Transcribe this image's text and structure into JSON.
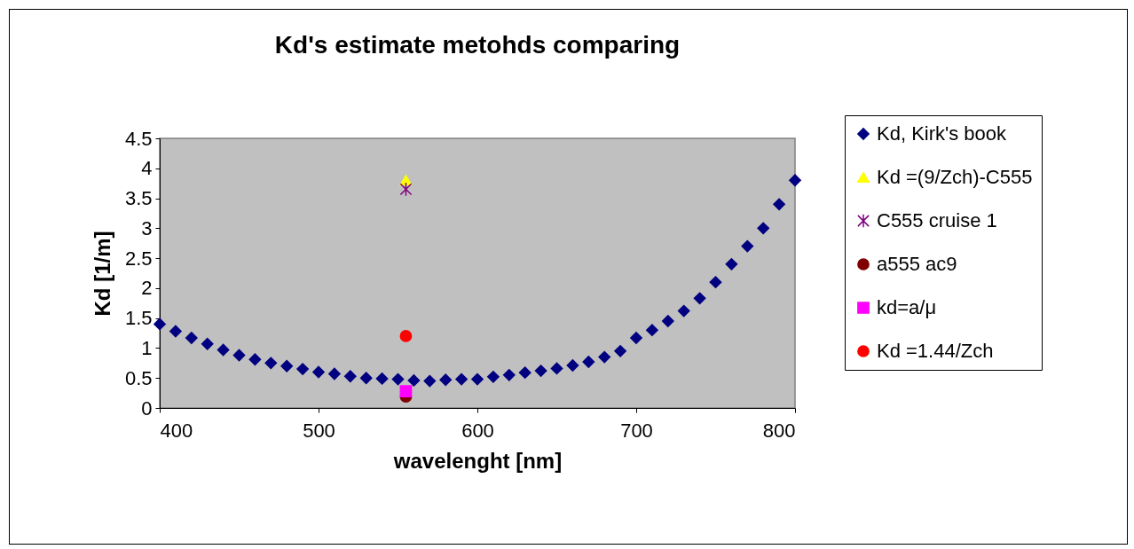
{
  "chart_data": {
    "type": "scatter",
    "title": "Kd's estimate metohds comparing",
    "xlabel": "wavelenght [nm]",
    "ylabel": "Kd [1/m]",
    "xlim": [
      400,
      800
    ],
    "xticks": [
      400,
      500,
      600,
      700,
      800
    ],
    "ylim": [
      0,
      4.5
    ],
    "yticks": [
      0,
      0.5,
      1,
      1.5,
      2,
      2.5,
      3,
      3.5,
      4,
      4.5
    ],
    "grid": false,
    "legend": "right",
    "series": [
      {
        "name": "Kd, Kirk's book",
        "color": "#000080",
        "marker": "diamond",
        "x": [
          400,
          410,
          420,
          430,
          440,
          450,
          460,
          470,
          480,
          490,
          500,
          510,
          520,
          530,
          540,
          550,
          560,
          570,
          580,
          590,
          600,
          610,
          620,
          630,
          640,
          650,
          660,
          670,
          680,
          690,
          700,
          710,
          720,
          730,
          740,
          750,
          760,
          770,
          780,
          790,
          800
        ],
        "values": [
          1.4,
          1.28,
          1.17,
          1.07,
          0.97,
          0.88,
          0.81,
          0.75,
          0.7,
          0.65,
          0.6,
          0.57,
          0.53,
          0.5,
          0.49,
          0.48,
          0.46,
          0.45,
          0.47,
          0.48,
          0.48,
          0.52,
          0.55,
          0.59,
          0.62,
          0.66,
          0.71,
          0.77,
          0.85,
          0.95,
          1.17,
          1.3,
          1.45,
          1.62,
          1.83,
          2.1,
          2.4,
          2.7,
          3.0,
          3.4,
          3.8
        ]
      },
      {
        "name": "Kd =(9/Zch)-C555",
        "color": "#ffff00",
        "marker": "triangle",
        "x": [
          555
        ],
        "values": [
          3.8
        ]
      },
      {
        "name": "C555 cruise 1",
        "color": "#800080",
        "marker": "cross",
        "x": [
          555
        ],
        "values": [
          3.65
        ]
      },
      {
        "name": "a555 ac9",
        "color": "#800000",
        "marker": "circle",
        "x": [
          555
        ],
        "values": [
          0.19
        ]
      },
      {
        "name": "kd=a/μ",
        "color": "#ff00ff",
        "marker": "square",
        "x": [
          555
        ],
        "values": [
          0.28
        ]
      },
      {
        "name": "Kd =1.44/Zch",
        "color": "#ff0000",
        "marker": "circle",
        "x": [
          555
        ],
        "values": [
          1.2
        ]
      }
    ]
  }
}
